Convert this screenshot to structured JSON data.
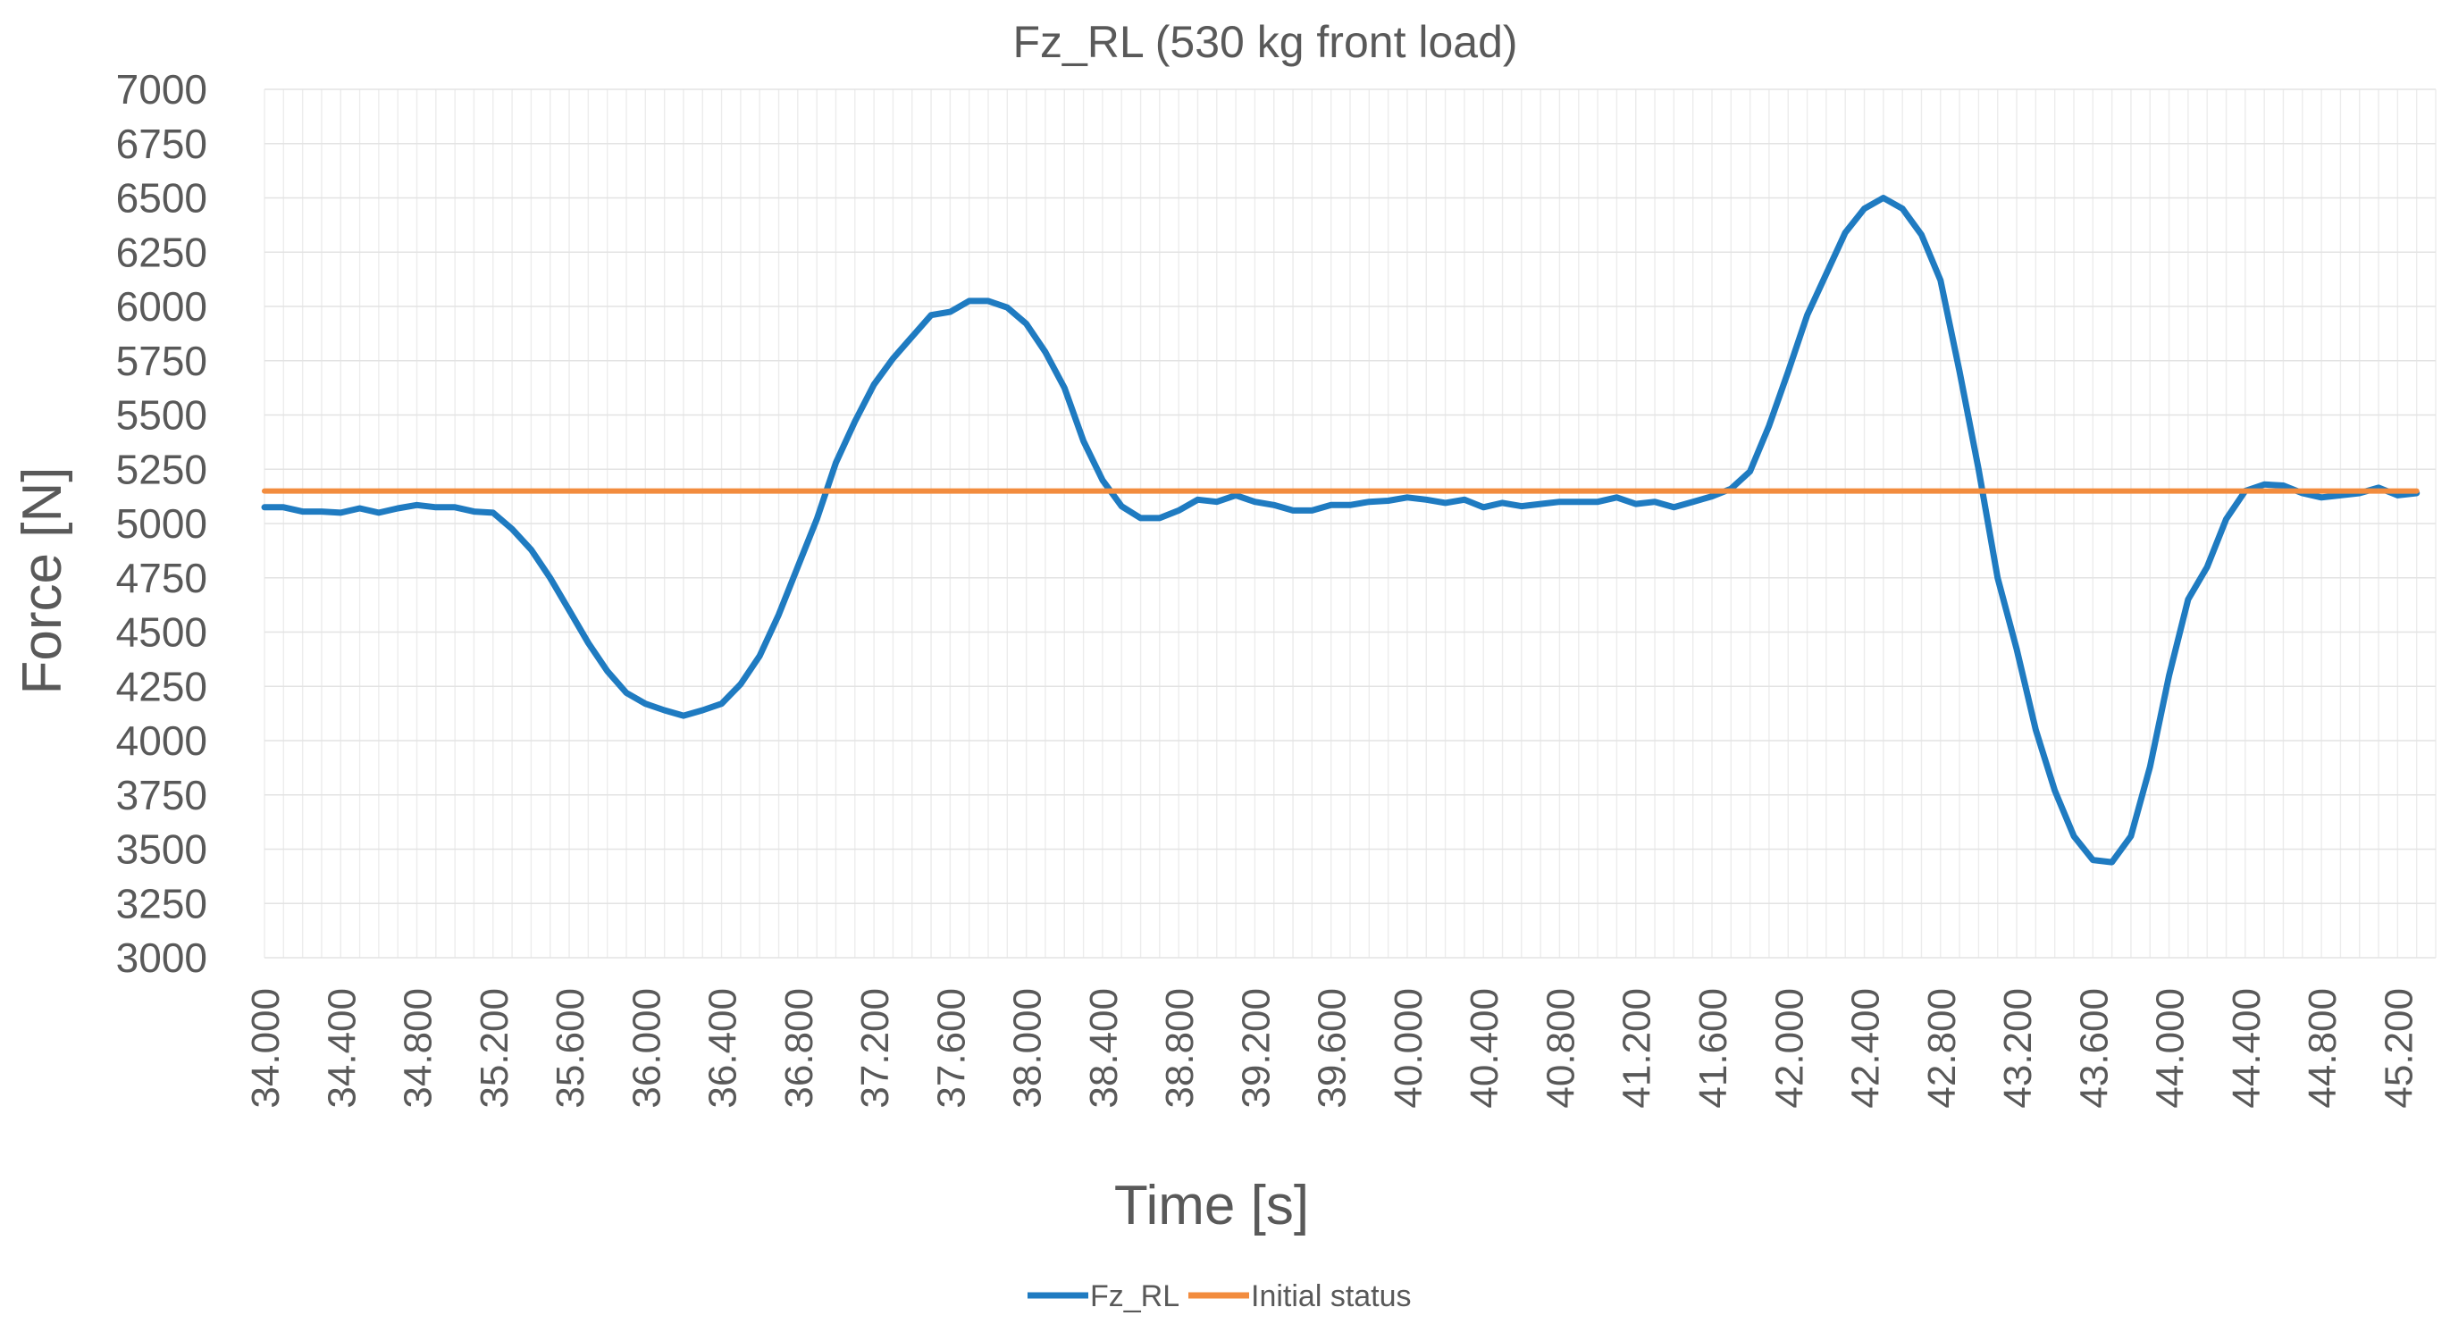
{
  "chart_data": {
    "type": "line",
    "title": "Fz_RL (530 kg front load)",
    "xlabel": "Time [s]",
    "ylabel": "Force [N]",
    "xlim": [
      34.0,
      45.4
    ],
    "ylim": [
      3000,
      7000
    ],
    "y_ticks": [
      3000,
      3250,
      3500,
      3750,
      4000,
      4250,
      4500,
      4750,
      5000,
      5250,
      5500,
      5750,
      6000,
      6250,
      6500,
      6750,
      7000
    ],
    "x_tick_labels": [
      "34.000",
      "34.400",
      "34.800",
      "35.200",
      "35.600",
      "36.000",
      "36.400",
      "36.800",
      "37.200",
      "37.600",
      "38.000",
      "38.400",
      "38.800",
      "39.200",
      "39.600",
      "40.000",
      "40.400",
      "40.800",
      "41.200",
      "41.600",
      "42.000",
      "42.400",
      "42.800",
      "43.200",
      "43.600",
      "44.000",
      "44.400",
      "44.800",
      "45.200"
    ],
    "grid": true,
    "legend_position": "bottom",
    "series": [
      {
        "name": "Fz_RL",
        "color": "#1F7BC1",
        "x": [
          34.0,
          34.1,
          34.2,
          34.3,
          34.4,
          34.5,
          34.6,
          34.7,
          34.8,
          34.9,
          35.0,
          35.1,
          35.2,
          35.3,
          35.4,
          35.5,
          35.6,
          35.7,
          35.8,
          35.9,
          36.0,
          36.1,
          36.2,
          36.3,
          36.4,
          36.5,
          36.6,
          36.7,
          36.8,
          36.9,
          37.0,
          37.1,
          37.2,
          37.3,
          37.4,
          37.5,
          37.6,
          37.7,
          37.8,
          37.9,
          38.0,
          38.1,
          38.2,
          38.3,
          38.4,
          38.5,
          38.6,
          38.7,
          38.8,
          38.9,
          39.0,
          39.1,
          39.2,
          39.3,
          39.4,
          39.5,
          39.6,
          39.7,
          39.8,
          39.9,
          40.0,
          40.1,
          40.2,
          40.3,
          40.4,
          40.5,
          40.6,
          40.7,
          40.8,
          40.9,
          41.0,
          41.1,
          41.2,
          41.3,
          41.4,
          41.5,
          41.6,
          41.7,
          41.8,
          41.9,
          42.0,
          42.1,
          42.2,
          42.3,
          42.4,
          42.5,
          42.6,
          42.7,
          42.8,
          42.9,
          43.0,
          43.1,
          43.2,
          43.3,
          43.4,
          43.5,
          43.6,
          43.7,
          43.8,
          43.9,
          44.0,
          44.1,
          44.2,
          44.3,
          44.4,
          44.5,
          44.6,
          44.7,
          44.8,
          44.9,
          45.0,
          45.1,
          45.2,
          45.3
        ],
        "values": [
          5075,
          5075,
          5055,
          5055,
          5050,
          5070,
          5050,
          5070,
          5085,
          5075,
          5075,
          5055,
          5050,
          4975,
          4880,
          4750,
          4600,
          4450,
          4320,
          4220,
          4170,
          4140,
          4115,
          4140,
          4170,
          4260,
          4390,
          4580,
          4800,
          5020,
          5280,
          5470,
          5640,
          5760,
          5860,
          5960,
          5975,
          6025,
          6025,
          5995,
          5920,
          5790,
          5625,
          5380,
          5200,
          5080,
          5025,
          5025,
          5060,
          5110,
          5100,
          5130,
          5100,
          5085,
          5060,
          5060,
          5085,
          5085,
          5100,
          5105,
          5120,
          5110,
          5095,
          5110,
          5075,
          5095,
          5080,
          5090,
          5100,
          5100,
          5100,
          5120,
          5090,
          5100,
          5075,
          5100,
          5125,
          5160,
          5240,
          5450,
          5700,
          5960,
          6150,
          6340,
          6450,
          6500,
          6450,
          6330,
          6120,
          5700,
          5250,
          4750,
          4420,
          4050,
          3770,
          3560,
          3450,
          3440,
          3560,
          3880,
          4300,
          4650,
          4800,
          5020,
          5150,
          5180,
          5175,
          5140,
          5120,
          5130,
          5140,
          5165,
          5130,
          5140
        ]
      },
      {
        "name": "Initial status",
        "color": "#F28C3E",
        "x": [
          34.0,
          45.3
        ],
        "values": [
          5150,
          5150
        ]
      }
    ]
  }
}
